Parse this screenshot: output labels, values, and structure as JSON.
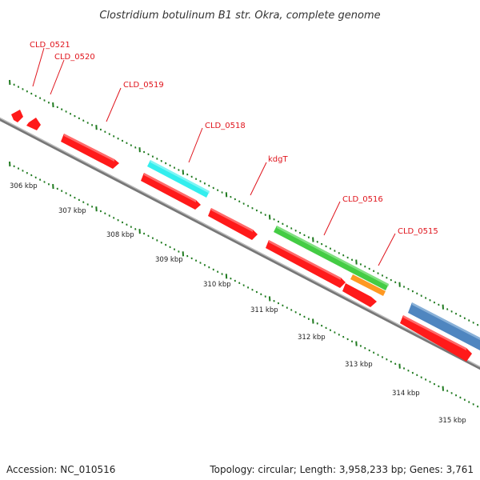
{
  "title": "Clostridium botulinum B1 str. Okra, complete genome",
  "footer": {
    "accession": "Accession: NC_010516",
    "summary": "Topology: circular; Length: 3,958,233 bp; Genes: 3,761"
  },
  "scale": {
    "ticks": [
      "306 kbp",
      "307 kbp",
      "308 kbp",
      "309 kbp",
      "310 kbp",
      "311 kbp",
      "312 kbp",
      "313 kbp",
      "314 kbp",
      "315 kbp"
    ]
  },
  "colors": {
    "cds": "#ff1a1a",
    "backbone": "#8a8a8a",
    "tick": "#1f7a1f",
    "label": "#e0141c",
    "cyan": "#33eeee",
    "green": "#44cc44",
    "orange": "#ff9922",
    "steelblue": "#4f86c0"
  },
  "genes": [
    {
      "label": "CLD_0521"
    },
    {
      "label": "CLD_0520"
    },
    {
      "label": "CLD_0519"
    },
    {
      "label": "CLD_0518"
    },
    {
      "label": "kdgT"
    },
    {
      "label": "CLD_0516"
    },
    {
      "label": "CLD_0515"
    }
  ]
}
